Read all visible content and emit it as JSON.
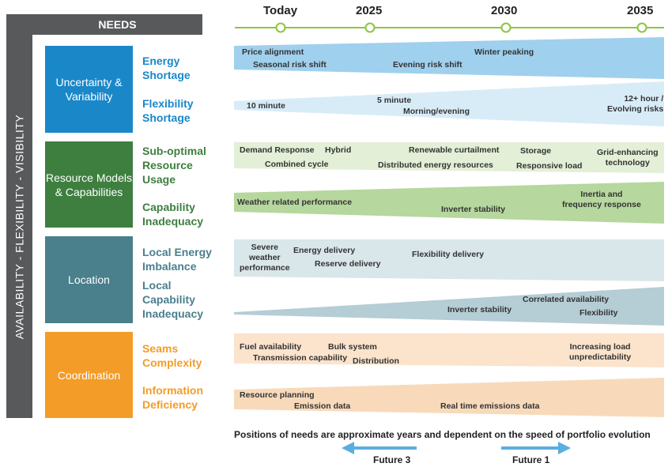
{
  "needs_header": "NEEDS",
  "side_label": "AVAILABILITY - FLEXIBILITY - VISIBILITY",
  "timeline": {
    "years": [
      "Today",
      "2025",
      "2030",
      "2035"
    ]
  },
  "categories": [
    {
      "label": "Uncertainty & Variability",
      "color": "#1a87c9"
    },
    {
      "label": "Resource Models & Capabilities",
      "color": "#3e7f3f"
    },
    {
      "label": "Location",
      "color": "#4a7f8c"
    },
    {
      "label": "Coordination",
      "color": "#f39c27"
    }
  ],
  "needs": [
    {
      "label": "Energy\nShortage",
      "color": "#1a87c9",
      "items": [
        "Price alignment",
        "Seasonal risk shift",
        "Evening risk shift",
        "Winter peaking"
      ]
    },
    {
      "label": "Flexibility\nShortage",
      "color": "#1a87c9",
      "items": [
        "10 minute",
        "5 minute",
        "Morning/evening",
        "12+ hour /\nEvolving risks"
      ]
    },
    {
      "label": "Sub-optimal\nResource\nUsage",
      "color": "#3e7f3f",
      "items": [
        "Demand Response",
        "Hybrid",
        "Combined cycle",
        "Renewable curtailment",
        "Distributed energy resources",
        "Storage",
        "Responsive load",
        "Grid-enhancing\ntechnology"
      ]
    },
    {
      "label": "Capability\nInadequacy",
      "color": "#3e7f3f",
      "items": [
        "Weather related performance",
        "Inverter stability",
        "Inertia and\nfrequency response"
      ]
    },
    {
      "label": "Local Energy\nImbalance",
      "color": "#4a7f8c",
      "items": [
        "Severe\nweather\nperformance",
        "Energy delivery",
        "Reserve delivery",
        "Flexibility delivery"
      ]
    },
    {
      "label": "Local\nCapability\nInadequacy",
      "color": "#4a7f8c",
      "items": [
        "Inverter stability",
        "Correlated availability",
        "Flexibility"
      ]
    },
    {
      "label": "Seams\nComplexity",
      "color": "#f39c27",
      "items": [
        "Fuel availability",
        "Bulk system",
        "Transmission capability",
        "Distribution",
        "Increasing load\nunpredictability"
      ]
    },
    {
      "label": "Information\nDeficiency",
      "color": "#f39c27",
      "items": [
        "Resource planning",
        "Emission data",
        "Real time emissions data"
      ]
    }
  ],
  "footnote": "Positions of needs are approximate years and dependent on the speed of portfolio evolution",
  "futures": [
    {
      "label": "Future 3",
      "color": "#5aaee0"
    },
    {
      "label": "Future 1",
      "color": "#5aaee0"
    }
  ],
  "colors": {
    "frame": "#58595b",
    "timeline": "#8cc63f",
    "band_energy": "#9fd0ee",
    "band_flex": "#d8ecf8",
    "band_subopt": "#e3efd6",
    "band_capability": "#b6d79d",
    "band_local_energy": "#d9e6ea",
    "band_local_cap": "#b5cdd4",
    "band_seams": "#fbe3cc",
    "band_info": "#f8dabb"
  }
}
